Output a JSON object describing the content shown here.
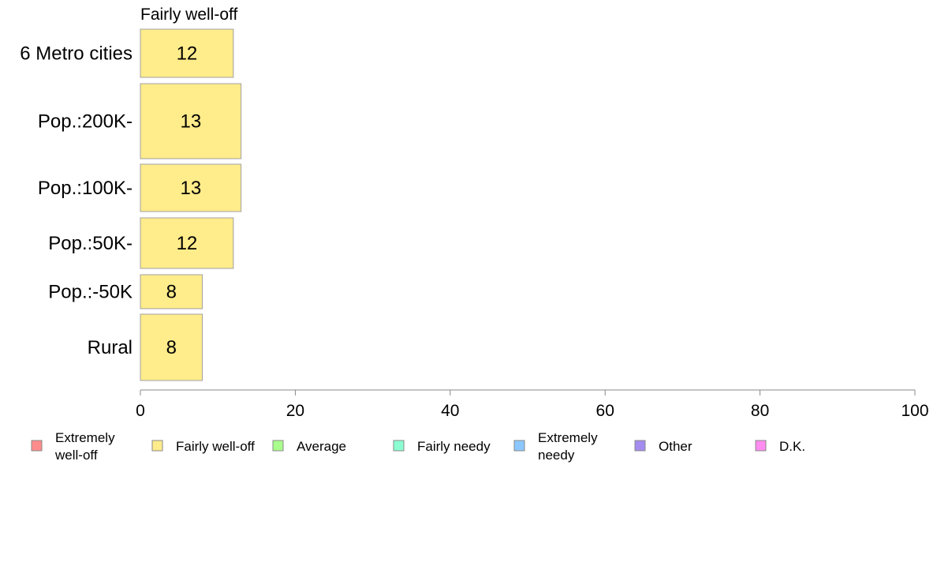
{
  "chart_data": {
    "type": "bar",
    "orientation": "horizontal",
    "series_title": "Fairly well-off",
    "categories": [
      "6 Metro cities",
      "Pop.:200K-",
      "Pop.:100K-",
      "Pop.:50K-",
      "Pop.:-50K",
      "Rural"
    ],
    "values": [
      12,
      13,
      13,
      12,
      8,
      8
    ],
    "value_labels": [
      "12",
      "13",
      "13",
      "12",
      "8",
      "8"
    ],
    "bar_color": "#FFEC8B",
    "bar_stroke": "#A0A0A0",
    "xlim": [
      0,
      100
    ],
    "xticks": [
      "0",
      "20",
      "40",
      "60",
      "80",
      "100"
    ],
    "grid": false,
    "legend_position": "bottom",
    "legend": [
      {
        "lines": [
          "Extremely",
          "well-off"
        ],
        "color": "#FF8C8C"
      },
      {
        "lines": [
          "Fairly well-off"
        ],
        "color": "#FFEC8B"
      },
      {
        "lines": [
          "Average"
        ],
        "color": "#AAFF8C"
      },
      {
        "lines": [
          "Fairly needy"
        ],
        "color": "#8CFFD2"
      },
      {
        "lines": [
          "Extremely",
          "needy"
        ],
        "color": "#8CC8FF"
      },
      {
        "lines": [
          "Other"
        ],
        "color": "#A48CF0"
      },
      {
        "lines": [
          "D.K."
        ],
        "color": "#FF8CF0"
      }
    ]
  }
}
